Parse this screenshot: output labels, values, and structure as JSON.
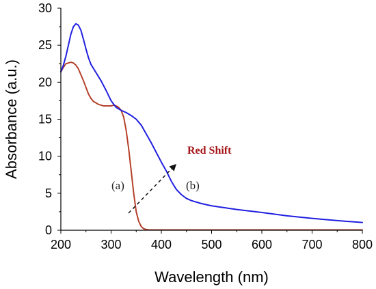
{
  "chart_data": {
    "type": "line",
    "title": "",
    "xlabel": "Wavelength (nm)",
    "ylabel": "Absorbance (a.u.)",
    "xlim": [
      200,
      800
    ],
    "ylim": [
      0,
      30
    ],
    "xticks": [
      200,
      300,
      400,
      500,
      600,
      700,
      800
    ],
    "yticks": [
      0,
      5,
      10,
      15,
      20,
      25,
      30
    ],
    "grid": false,
    "series": [
      {
        "name": "(a)",
        "color": "#b5402a",
        "x": [
          200,
          205,
          210,
          215,
          220,
          225,
          230,
          235,
          240,
          245,
          250,
          255,
          260,
          265,
          270,
          275,
          280,
          285,
          290,
          295,
          300,
          305,
          310,
          315,
          320,
          325,
          330,
          335,
          340,
          345,
          350,
          355,
          360,
          365,
          370,
          375,
          380,
          390,
          400,
          450,
          500,
          600,
          700,
          800
        ],
        "y": [
          21.4,
          22.0,
          22.5,
          22.6,
          22.7,
          22.6,
          22.3,
          21.8,
          21.0,
          20.2,
          19.3,
          18.4,
          17.8,
          17.4,
          17.2,
          17.0,
          16.9,
          16.8,
          16.8,
          16.8,
          16.8,
          16.9,
          16.8,
          16.6,
          16.2,
          15.3,
          13.5,
          11.0,
          8.0,
          5.0,
          2.5,
          1.2,
          0.5,
          0.2,
          0.1,
          0.05,
          0.05,
          0.05,
          0.05,
          0.05,
          0.05,
          0.05,
          0.05,
          0.05
        ]
      },
      {
        "name": "(b)",
        "color": "#1f1fe0",
        "x": [
          200,
          205,
          210,
          215,
          220,
          225,
          230,
          235,
          240,
          245,
          250,
          255,
          260,
          270,
          280,
          290,
          300,
          310,
          320,
          330,
          340,
          350,
          360,
          370,
          380,
          390,
          400,
          410,
          420,
          430,
          440,
          450,
          460,
          480,
          500,
          550,
          600,
          650,
          700,
          750,
          800
        ],
        "y": [
          21.4,
          22.3,
          23.5,
          25.0,
          26.5,
          27.5,
          27.9,
          27.7,
          27.0,
          25.8,
          24.5,
          23.3,
          22.4,
          21.3,
          20.2,
          18.9,
          17.5,
          16.6,
          16.2,
          15.9,
          15.5,
          15.0,
          14.2,
          13.0,
          11.8,
          10.5,
          9.2,
          8.0,
          6.6,
          5.5,
          4.8,
          4.3,
          4.0,
          3.6,
          3.3,
          2.8,
          2.4,
          1.95,
          1.6,
          1.3,
          1.05
        ]
      }
    ],
    "annotations": {
      "label_a": "(a)",
      "label_b": "(b)",
      "red_shift": "Red Shift",
      "red_shift_color": "#a4161a"
    }
  }
}
